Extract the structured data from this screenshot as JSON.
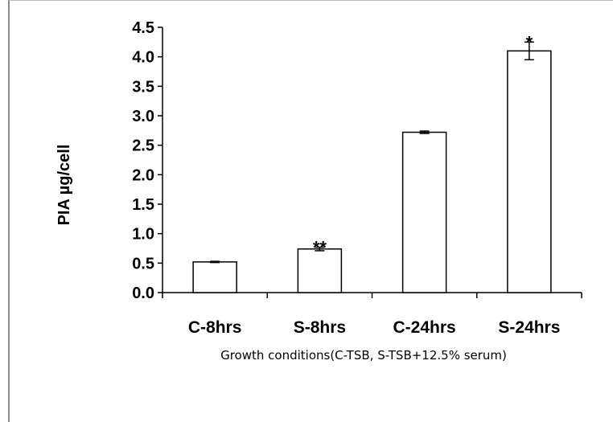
{
  "chart_data": {
    "type": "bar",
    "categories": [
      "C-8hrs",
      "S-8hrs",
      "C-24hrs",
      "S-24hrs"
    ],
    "values": [
      0.52,
      0.74,
      2.72,
      4.1
    ],
    "errors": [
      0.01,
      0.03,
      0.02,
      0.15
    ],
    "annotations": [
      "",
      "**",
      "",
      "*"
    ],
    "ylabel": "PIA µg/cell",
    "xlabel": "Growth conditions(C-TSB,  S-TSB+12.5% serum)",
    "ylim": [
      0,
      4.5
    ],
    "yticks": [
      "0.0",
      "0.5",
      "1.0",
      "1.5",
      "2.0",
      "2.5",
      "3.0",
      "3.5",
      "4.0",
      "4.5"
    ],
    "grid": false,
    "bar_color": "#ffffff",
    "edge_color": "#000000"
  }
}
